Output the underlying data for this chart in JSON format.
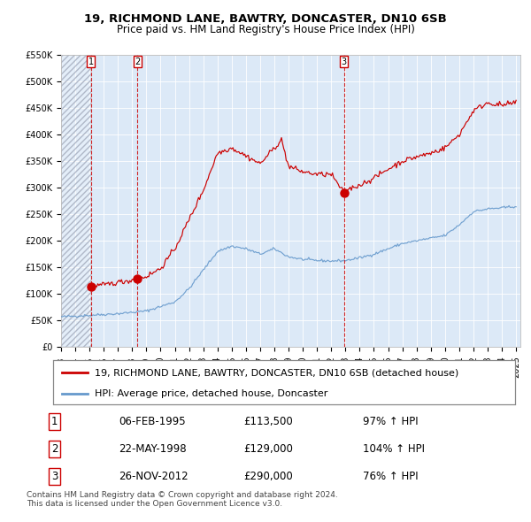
{
  "title": "19, RICHMOND LANE, BAWTRY, DONCASTER, DN10 6SB",
  "subtitle": "Price paid vs. HM Land Registry's House Price Index (HPI)",
  "ylim": [
    0,
    550000
  ],
  "yticks": [
    0,
    50000,
    100000,
    150000,
    200000,
    250000,
    300000,
    350000,
    400000,
    450000,
    500000,
    550000
  ],
  "ytick_labels": [
    "£0",
    "£50K",
    "£100K",
    "£150K",
    "£200K",
    "£250K",
    "£300K",
    "£350K",
    "£400K",
    "£450K",
    "£500K",
    "£550K"
  ],
  "x_start_year": 1993,
  "x_end_year": 2025,
  "plot_bg_color": "#dce9f7",
  "red_line_color": "#cc0000",
  "blue_line_color": "#6699cc",
  "sale_dates": [
    1995.09,
    1998.38,
    2012.9
  ],
  "sale_prices": [
    113500,
    129000,
    290000
  ],
  "sale_labels": [
    "1",
    "2",
    "3"
  ],
  "vline_color": "#cc0000",
  "legend_label_red": "19, RICHMOND LANE, BAWTRY, DONCASTER, DN10 6SB (detached house)",
  "legend_label_blue": "HPI: Average price, detached house, Doncaster",
  "table_data": [
    [
      "1",
      "06-FEB-1995",
      "£113,500",
      "97% ↑ HPI"
    ],
    [
      "2",
      "22-MAY-1998",
      "£129,000",
      "104% ↑ HPI"
    ],
    [
      "3",
      "26-NOV-2012",
      "£290,000",
      "76% ↑ HPI"
    ]
  ],
  "footer_text": "Contains HM Land Registry data © Crown copyright and database right 2024.\nThis data is licensed under the Open Government Licence v3.0.",
  "title_fontsize": 9.5,
  "subtitle_fontsize": 8.5,
  "tick_fontsize": 7,
  "legend_fontsize": 8,
  "table_fontsize": 8.5,
  "footer_fontsize": 6.5
}
